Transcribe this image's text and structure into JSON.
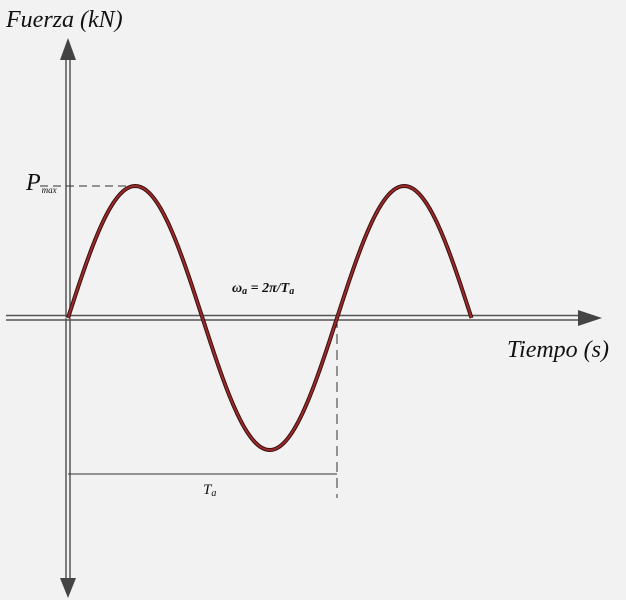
{
  "labels": {
    "y_axis": "Fuerza (kN)",
    "x_axis": "Tiempo (s)",
    "peak_main": "P",
    "peak_sub": "max",
    "omega_main": "ω",
    "omega_sub": "a",
    "omega_rest": " = 2π/T",
    "omega_rest_sub": "a",
    "period_main": "T",
    "period_sub": "a"
  },
  "colors": {
    "background": "#f2f2f2",
    "axis": "#555555",
    "curve": "#8b1a1a",
    "curve_outline": "#3a1010",
    "guide": "#333333"
  },
  "wave": {
    "cycles_shown": 1.5,
    "amplitude_label": "P_max"
  }
}
